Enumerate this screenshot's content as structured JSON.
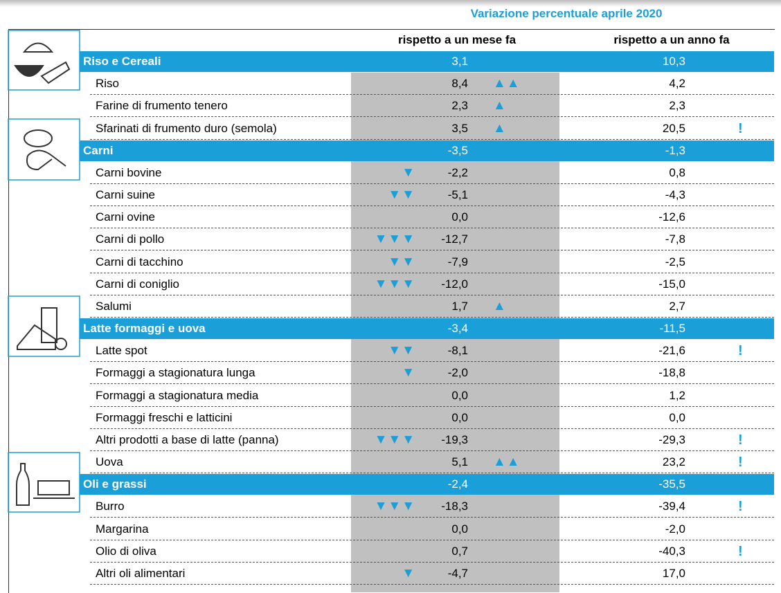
{
  "header": {
    "title": "Variazione percentuale aprile 2020",
    "col_month": "rispetto a un mese fa",
    "col_year": "rispetto a un anno fa"
  },
  "groups": [
    {
      "name": "Riso e Cereali",
      "month": "3,1",
      "year": "10,3",
      "items": [
        {
          "name": "Riso",
          "month": "8,4",
          "arrows": "▲▲",
          "year": "4,2"
        },
        {
          "name": "Farine di frumento tenero",
          "month": "2,3",
          "arrows": "▲",
          "year": "2,3"
        },
        {
          "name": "Sfarinati di frumento duro (semola)",
          "month": "3,5",
          "arrows": "▲",
          "year": "20,5",
          "alert": "!"
        }
      ]
    },
    {
      "name": "Carni",
      "month": "-3,5",
      "year": "-1,3",
      "items": [
        {
          "name": "Carni bovine",
          "month": "-2,2",
          "arrows": "▼",
          "year": "0,8"
        },
        {
          "name": "Carni suine",
          "month": "-5,1",
          "arrows": "▼▼",
          "year": "-4,3"
        },
        {
          "name": "Carni ovine",
          "month": "0,0",
          "year": "-12,6"
        },
        {
          "name": "Carni di pollo",
          "month": "-12,7",
          "arrows": "▼▼▼",
          "year": "-7,8"
        },
        {
          "name": "Carni di tacchino",
          "month": "-7,9",
          "arrows": "▼▼",
          "year": "-2,5"
        },
        {
          "name": "Carni di coniglio",
          "month": "-12,0",
          "arrows": "▼▼▼",
          "year": "-15,0"
        },
        {
          "name": "Salumi",
          "month": "1,7",
          "arrows": "▲",
          "year": "2,7"
        }
      ]
    },
    {
      "name": "Latte formaggi e uova",
      "month": "-3,4",
      "year": "-11,5",
      "items": [
        {
          "name": "Latte spot",
          "month": "-8,1",
          "arrows": "▼▼",
          "year": "-21,6",
          "alert": "!"
        },
        {
          "name": "Formaggi a stagionatura lunga",
          "month": "-2,0",
          "arrows": "▼",
          "year": "-18,8"
        },
        {
          "name": "Formaggi a stagionatura media",
          "month": "0,0",
          "year": "1,2"
        },
        {
          "name": "Formaggi freschi e latticini",
          "month": "0,0",
          "year": "0,0"
        },
        {
          "name": "Altri prodotti a base di latte (panna)",
          "month": "-19,3",
          "arrows": "▼▼▼",
          "year": "-29,3",
          "alert": "!"
        },
        {
          "name": "Uova",
          "month": "5,1",
          "arrows": "▲▲",
          "year": "23,2",
          "alert": "!"
        }
      ]
    },
    {
      "name": "Oli e grassi",
      "month": "-2,4",
      "year": "-35,5",
      "items": [
        {
          "name": "Burro",
          "month": "-18,3",
          "arrows": "▼▼▼",
          "year": "-39,4",
          "alert": "!"
        },
        {
          "name": "Margarina",
          "month": "0,0",
          "year": "-2,0"
        },
        {
          "name": "Olio di oliva",
          "month": "0,7",
          "year": "-40,3",
          "alert": "!"
        },
        {
          "name": "Altri oli alimentari",
          "month": "-4,7",
          "arrows": "▼",
          "year": "17,0"
        }
      ]
    }
  ]
}
